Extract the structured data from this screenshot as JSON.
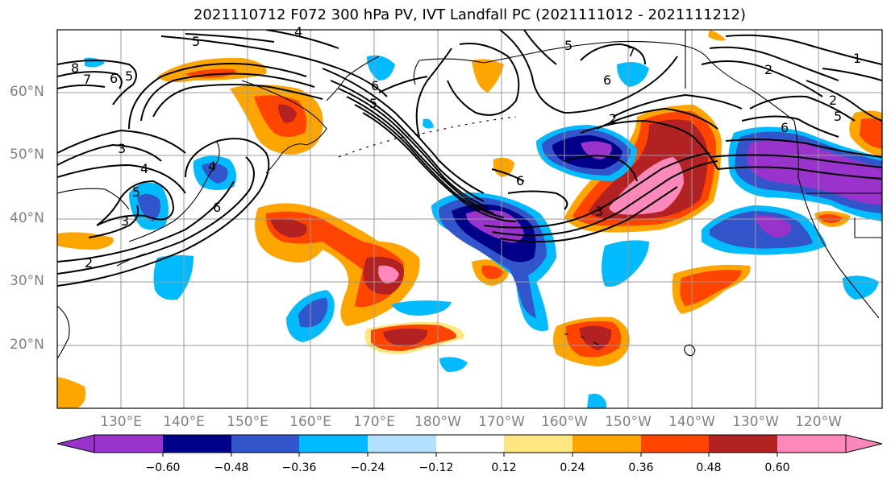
{
  "title": "2021110712 F072 300 hPa PV, IVT Landfall PC (2021111012 - 2021111212)",
  "map": {
    "projection": "Plate Carree, North Pacific",
    "lat_labels": [
      "60°N",
      "50°N",
      "40°N",
      "30°N",
      "20°N"
    ],
    "lon_labels": [
      "130°E",
      "140°E",
      "150°E",
      "160°E",
      "170°E",
      "180°W",
      "170°W",
      "160°W",
      "150°W",
      "140°W",
      "130°W",
      "120°W"
    ],
    "grid": true,
    "contour_labels": [
      "5",
      "4",
      "8",
      "7",
      "6",
      "5",
      "6",
      "5",
      "7",
      "6",
      "5",
      "2",
      "1",
      "2",
      "6",
      "3",
      "4",
      "5",
      "6",
      "2",
      "3",
      "4",
      "5",
      "2",
      "6",
      "3"
    ]
  },
  "colorbar": {
    "orientation": "horizontal",
    "extend": "both",
    "ticks": [
      "−0.60",
      "−0.48",
      "−0.36",
      "−0.24",
      "−0.12",
      "0.12",
      "0.24",
      "0.36",
      "0.48",
      "0.60"
    ],
    "colors": [
      "#9933cc",
      "#000088",
      "#3355cc",
      "#00bbff",
      "#b3e0ff",
      "#ffffff",
      "#ffe680",
      "#ffa500",
      "#ff4400",
      "#b22222",
      "#ff88bb"
    ]
  }
}
